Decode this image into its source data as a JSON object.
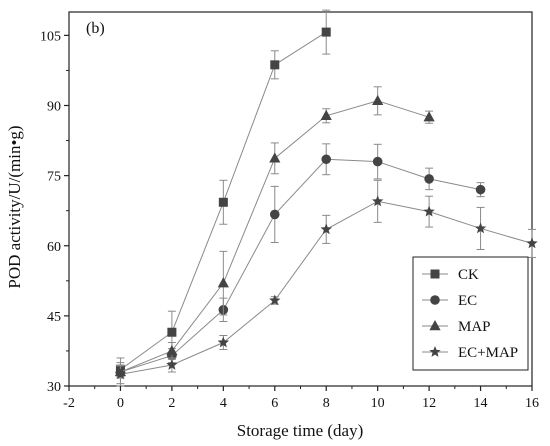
{
  "chart_data": {
    "type": "line",
    "panel_label": "(b)",
    "xlabel": "Storage time (day)",
    "ylabel": "POD activity/U/(min•g)",
    "xlim": [
      -2,
      16
    ],
    "ylim": [
      30,
      110
    ],
    "xticks": [
      -2,
      0,
      2,
      4,
      6,
      8,
      10,
      12,
      14,
      16
    ],
    "yticks": [
      30,
      45,
      60,
      75,
      90,
      105
    ],
    "legend_position": "lower-right",
    "grid": false,
    "series": [
      {
        "name": "CK",
        "marker": "square",
        "x": [
          0,
          2,
          4,
          6,
          8
        ],
        "y": [
          33.5,
          41.5,
          69.3,
          98.7,
          105.7
        ],
        "err": [
          1.5,
          4.5,
          4.7,
          3.0,
          4.7
        ]
      },
      {
        "name": "EC",
        "marker": "circle",
        "x": [
          0,
          2,
          4,
          6,
          8,
          10,
          12,
          14
        ],
        "y": [
          33.0,
          36.5,
          46.3,
          66.7,
          78.5,
          78.0,
          74.3,
          72.0
        ],
        "err": [
          1.3,
          1.5,
          2.5,
          6.0,
          3.3,
          3.7,
          2.3,
          1.5
        ]
      },
      {
        "name": "MAP",
        "marker": "triangle",
        "x": [
          0,
          2,
          4,
          6,
          8,
          10,
          12
        ],
        "y": [
          33.0,
          37.5,
          52.0,
          78.7,
          87.8,
          91.0,
          87.5
        ],
        "err": [
          3.0,
          1.8,
          6.8,
          3.3,
          1.5,
          3.0,
          1.3
        ]
      },
      {
        "name": "EC+MAP",
        "marker": "star",
        "x": [
          0,
          2,
          4,
          6,
          8,
          10,
          12,
          14,
          16
        ],
        "y": [
          32.5,
          34.5,
          39.3,
          48.3,
          63.5,
          69.5,
          67.3,
          63.7,
          60.5
        ],
        "err": [
          2.0,
          1.5,
          1.5,
          0.8,
          3.0,
          4.5,
          3.3,
          4.5,
          3.0
        ]
      }
    ]
  }
}
